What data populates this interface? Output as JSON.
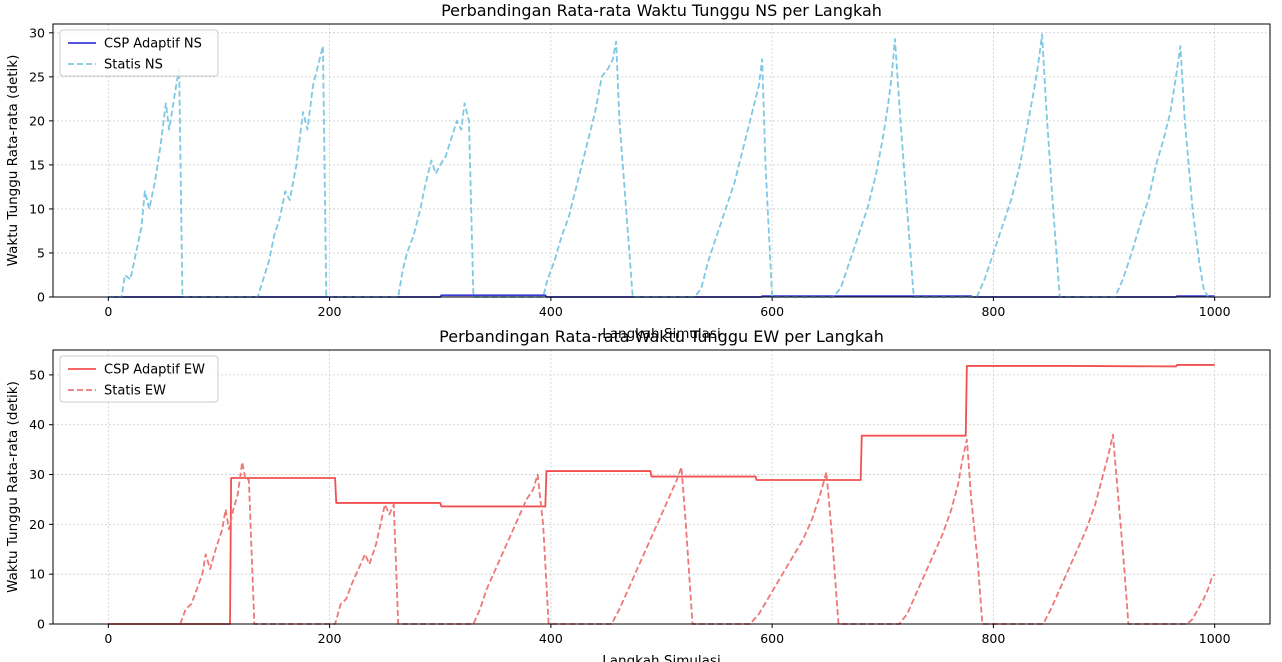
{
  "chart_data": [
    {
      "type": "line",
      "title": "Perbandingan Rata-rata Waktu Tunggu NS per Langkah",
      "xlabel": "Langkah Simulasi",
      "ylabel": "Waktu Tunggu Rata-rata (detik)",
      "xlim": [
        -50,
        1050
      ],
      "ylim": [
        0,
        31
      ],
      "xticks": [
        0,
        200,
        400,
        600,
        800,
        1000
      ],
      "yticks": [
        0,
        5,
        10,
        15,
        20,
        25,
        30
      ],
      "grid": true,
      "legend_position": "top-left",
      "series": [
        {
          "name": "CSP Adaptif NS",
          "style": "solid",
          "color": "#3b3bdb",
          "points": [
            [
              0,
              0
            ],
            [
              300,
              0
            ],
            [
              301,
              0.2
            ],
            [
              395,
              0.2
            ],
            [
              396,
              0
            ],
            [
              590,
              0
            ],
            [
              591,
              0.1
            ],
            [
              780,
              0.1
            ],
            [
              781,
              0
            ],
            [
              965,
              0
            ],
            [
              966,
              0.1
            ],
            [
              1000,
              0.1
            ]
          ]
        },
        {
          "name": "Statis NS",
          "style": "dashed",
          "color": "#7ec8e3",
          "points": [
            [
              0,
              0
            ],
            [
              12,
              0
            ],
            [
              15,
              2.5
            ],
            [
              20,
              2
            ],
            [
              25,
              5
            ],
            [
              30,
              8
            ],
            [
              33,
              12
            ],
            [
              37,
              10
            ],
            [
              42,
              13
            ],
            [
              47,
              17
            ],
            [
              52,
              22
            ],
            [
              55,
              19
            ],
            [
              60,
              23
            ],
            [
              64,
              26
            ],
            [
              67,
              0
            ],
            [
              135,
              0
            ],
            [
              140,
              2
            ],
            [
              145,
              4
            ],
            [
              150,
              7
            ],
            [
              155,
              9
            ],
            [
              160,
              12
            ],
            [
              164,
              11
            ],
            [
              170,
              15
            ],
            [
              176,
              21
            ],
            [
              180,
              19
            ],
            [
              185,
              24
            ],
            [
              189,
              26
            ],
            [
              194,
              28.5
            ],
            [
              197,
              0
            ],
            [
              262,
              0
            ],
            [
              266,
              3
            ],
            [
              270,
              5
            ],
            [
              276,
              7
            ],
            [
              282,
              10
            ],
            [
              287,
              13
            ],
            [
              292,
              15.5
            ],
            [
              296,
              14
            ],
            [
              300,
              15
            ],
            [
              305,
              16
            ],
            [
              310,
              18
            ],
            [
              315,
              20
            ],
            [
              319,
              19
            ],
            [
              322,
              22
            ],
            [
              326,
              20
            ],
            [
              330,
              0
            ],
            [
              393,
              0
            ],
            [
              397,
              2
            ],
            [
              403,
              4
            ],
            [
              410,
              7
            ],
            [
              416,
              9
            ],
            [
              422,
              12
            ],
            [
              428,
              15
            ],
            [
              434,
              18
            ],
            [
              440,
              21
            ],
            [
              446,
              25
            ],
            [
              452,
              26
            ],
            [
              456,
              27
            ],
            [
              459,
              29
            ],
            [
              462,
              20
            ],
            [
              468,
              10
            ],
            [
              474,
              0
            ],
            [
              530,
              0
            ],
            [
              536,
              1
            ],
            [
              542,
              4
            ],
            [
              550,
              7
            ],
            [
              558,
              10
            ],
            [
              566,
              13
            ],
            [
              572,
              16
            ],
            [
              578,
              19
            ],
            [
              584,
              22
            ],
            [
              588,
              24
            ],
            [
              591,
              27
            ],
            [
              594,
              15
            ],
            [
              600,
              0
            ],
            [
              655,
              0
            ],
            [
              662,
              1
            ],
            [
              670,
              4
            ],
            [
              678,
              7
            ],
            [
              686,
              10
            ],
            [
              694,
              14
            ],
            [
              700,
              18
            ],
            [
              705,
              22
            ],
            [
              708,
              25
            ],
            [
              711,
              29.3
            ],
            [
              716,
              20
            ],
            [
              722,
              10
            ],
            [
              728,
              0
            ],
            [
              785,
              0
            ],
            [
              792,
              2
            ],
            [
              800,
              5
            ],
            [
              808,
              8
            ],
            [
              816,
              11
            ],
            [
              824,
              15
            ],
            [
              830,
              19
            ],
            [
              836,
              23
            ],
            [
              840,
              26
            ],
            [
              844,
              29.8
            ],
            [
              848,
              21
            ],
            [
              854,
              10
            ],
            [
              860,
              0
            ],
            [
              910,
              0
            ],
            [
              917,
              2
            ],
            [
              925,
              5
            ],
            [
              932,
              8
            ],
            [
              940,
              11
            ],
            [
              947,
              15
            ],
            [
              954,
              18
            ],
            [
              960,
              21
            ],
            [
              965,
              25
            ],
            [
              969,
              28.5
            ],
            [
              973,
              20
            ],
            [
              980,
              10
            ],
            [
              986,
              4
            ],
            [
              990,
              1
            ],
            [
              994,
              0
            ],
            [
              1000,
              0
            ]
          ]
        }
      ]
    },
    {
      "type": "line",
      "title": "Perbandingan Rata-rata Waktu Tunggu EW per Langkah",
      "xlabel": "Langkah Simulasi",
      "ylabel": "Waktu Tunggu Rata-rata (detik)",
      "xlim": [
        -50,
        1050
      ],
      "ylim": [
        0,
        55
      ],
      "xticks": [
        0,
        200,
        400,
        600,
        800,
        1000
      ],
      "yticks": [
        0,
        10,
        20,
        30,
        40,
        50
      ],
      "grid": true,
      "legend_position": "top-left",
      "series": [
        {
          "name": "CSP Adaptif EW",
          "style": "solid",
          "color": "#f05050",
          "points": [
            [
              0,
              0
            ],
            [
              110,
              0
            ],
            [
              111,
              29.3
            ],
            [
              205,
              29.3
            ],
            [
              206,
              24.3
            ],
            [
              300,
              24.3
            ],
            [
              301,
              23.6
            ],
            [
              395,
              23.6
            ],
            [
              396,
              30.7
            ],
            [
              490,
              30.7
            ],
            [
              491,
              29.6
            ],
            [
              585,
              29.6
            ],
            [
              586,
              28.9
            ],
            [
              680,
              28.9
            ],
            [
              681,
              37.8
            ],
            [
              775,
              37.8
            ],
            [
              776,
              51.8
            ],
            [
              870,
              51.8
            ],
            [
              965,
              51.7
            ],
            [
              966,
              52
            ],
            [
              1000,
              52
            ]
          ]
        },
        {
          "name": "Statis EW",
          "style": "dashed",
          "color": "#ee7777",
          "points": [
            [
              0,
              0
            ],
            [
              65,
              0
            ],
            [
              70,
              3
            ],
            [
              75,
              4
            ],
            [
              80,
              7
            ],
            [
              85,
              10
            ],
            [
              88,
              14
            ],
            [
              92,
              11
            ],
            [
              97,
              15
            ],
            [
              103,
              19
            ],
            [
              106,
              23
            ],
            [
              109,
              19
            ],
            [
              113,
              23
            ],
            [
              117,
              26
            ],
            [
              121,
              32.5
            ],
            [
              124,
              29
            ],
            [
              127,
              29
            ],
            [
              132,
              0
            ],
            [
              205,
              0
            ],
            [
              210,
              4
            ],
            [
              215,
              5
            ],
            [
              220,
              8
            ],
            [
              226,
              11
            ],
            [
              232,
              14
            ],
            [
              236,
              12
            ],
            [
              242,
              16
            ],
            [
              247,
              21
            ],
            [
              250,
              24
            ],
            [
              254,
              22
            ],
            [
              258,
              24
            ],
            [
              262,
              0
            ],
            [
              330,
              0
            ],
            [
              336,
              3
            ],
            [
              342,
              7
            ],
            [
              348,
              10
            ],
            [
              354,
              13
            ],
            [
              360,
              16
            ],
            [
              366,
              19
            ],
            [
              372,
              22
            ],
            [
              378,
              25
            ],
            [
              384,
              27
            ],
            [
              388,
              30
            ],
            [
              393,
              20
            ],
            [
              398,
              0
            ],
            [
              455,
              0
            ],
            [
              462,
              3
            ],
            [
              468,
              6
            ],
            [
              474,
              9
            ],
            [
              480,
              12
            ],
            [
              486,
              15
            ],
            [
              492,
              18
            ],
            [
              498,
              21
            ],
            [
              504,
              24
            ],
            [
              510,
              27
            ],
            [
              514,
              29
            ],
            [
              518,
              31.5
            ],
            [
              522,
              20
            ],
            [
              528,
              0
            ],
            [
              580,
              0
            ],
            [
              588,
              2
            ],
            [
              596,
              5
            ],
            [
              604,
              8
            ],
            [
              612,
              11
            ],
            [
              620,
              14
            ],
            [
              628,
              17
            ],
            [
              636,
              21
            ],
            [
              642,
              25
            ],
            [
              646,
              28
            ],
            [
              649,
              30.5
            ],
            [
              654,
              18
            ],
            [
              660,
              0
            ],
            [
              715,
              0
            ],
            [
              722,
              2
            ],
            [
              730,
              6
            ],
            [
              738,
              10
            ],
            [
              746,
              14
            ],
            [
              754,
              18
            ],
            [
              762,
              23
            ],
            [
              768,
              28
            ],
            [
              772,
              33
            ],
            [
              776,
              37
            ],
            [
              780,
              25
            ],
            [
              786,
              12
            ],
            [
              790,
              0
            ],
            [
              845,
              0
            ],
            [
              852,
              3
            ],
            [
              860,
              7
            ],
            [
              868,
              11
            ],
            [
              876,
              15
            ],
            [
              884,
              19
            ],
            [
              892,
              24
            ],
            [
              898,
              29
            ],
            [
              904,
              34
            ],
            [
              908,
              38
            ],
            [
              913,
              25
            ],
            [
              918,
              12
            ],
            [
              922,
              0
            ],
            [
              975,
              0
            ],
            [
              980,
              1
            ],
            [
              985,
              3
            ],
            [
              990,
              5
            ],
            [
              994,
              7
            ],
            [
              997,
              9
            ],
            [
              1000,
              10
            ]
          ]
        }
      ]
    }
  ]
}
